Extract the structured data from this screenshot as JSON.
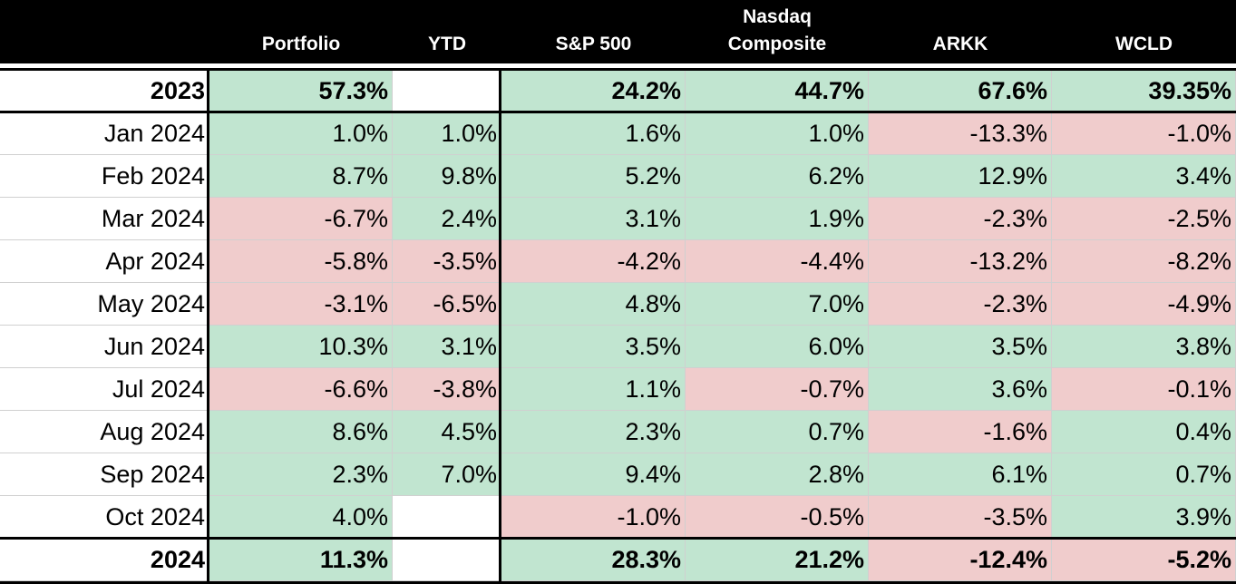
{
  "header": {
    "columns": [
      "",
      "Portfolio",
      "YTD",
      "S&P 500",
      "Nasdaq\nComposite",
      "ARKK",
      "WCLD"
    ]
  },
  "rows": [
    {
      "label": "2023",
      "bold": true,
      "cells": [
        [
          "57.3%",
          "pos"
        ],
        [
          "",
          "blank"
        ],
        [
          "24.2%",
          "pos"
        ],
        [
          "44.7%",
          "pos"
        ],
        [
          "67.6%",
          "pos"
        ],
        [
          "39.35%",
          "pos"
        ]
      ]
    },
    {
      "label": "Jan 2024",
      "bold": false,
      "cells": [
        [
          "1.0%",
          "pos"
        ],
        [
          "1.0%",
          "pos"
        ],
        [
          "1.6%",
          "pos"
        ],
        [
          "1.0%",
          "pos"
        ],
        [
          "-13.3%",
          "neg"
        ],
        [
          "-1.0%",
          "neg"
        ]
      ]
    },
    {
      "label": "Feb 2024",
      "bold": false,
      "cells": [
        [
          "8.7%",
          "pos"
        ],
        [
          "9.8%",
          "pos"
        ],
        [
          "5.2%",
          "pos"
        ],
        [
          "6.2%",
          "pos"
        ],
        [
          "12.9%",
          "pos"
        ],
        [
          "3.4%",
          "pos"
        ]
      ]
    },
    {
      "label": "Mar 2024",
      "bold": false,
      "cells": [
        [
          "-6.7%",
          "neg"
        ],
        [
          "2.4%",
          "pos"
        ],
        [
          "3.1%",
          "pos"
        ],
        [
          "1.9%",
          "pos"
        ],
        [
          "-2.3%",
          "neg"
        ],
        [
          "-2.5%",
          "neg"
        ]
      ]
    },
    {
      "label": "Apr 2024",
      "bold": false,
      "cells": [
        [
          "-5.8%",
          "neg"
        ],
        [
          "-3.5%",
          "neg"
        ],
        [
          "-4.2%",
          "neg"
        ],
        [
          "-4.4%",
          "neg"
        ],
        [
          "-13.2%",
          "neg"
        ],
        [
          "-8.2%",
          "neg"
        ]
      ]
    },
    {
      "label": "May 2024",
      "bold": false,
      "cells": [
        [
          "-3.1%",
          "neg"
        ],
        [
          "-6.5%",
          "neg"
        ],
        [
          "4.8%",
          "pos"
        ],
        [
          "7.0%",
          "pos"
        ],
        [
          "-2.3%",
          "neg"
        ],
        [
          "-4.9%",
          "neg"
        ]
      ]
    },
    {
      "label": "Jun 2024",
      "bold": false,
      "cells": [
        [
          "10.3%",
          "pos"
        ],
        [
          "3.1%",
          "pos"
        ],
        [
          "3.5%",
          "pos"
        ],
        [
          "6.0%",
          "pos"
        ],
        [
          "3.5%",
          "pos"
        ],
        [
          "3.8%",
          "pos"
        ]
      ]
    },
    {
      "label": "Jul 2024",
      "bold": false,
      "cells": [
        [
          "-6.6%",
          "neg"
        ],
        [
          "-3.8%",
          "neg"
        ],
        [
          "1.1%",
          "pos"
        ],
        [
          "-0.7%",
          "neg"
        ],
        [
          "3.6%",
          "pos"
        ],
        [
          "-0.1%",
          "neg"
        ]
      ]
    },
    {
      "label": "Aug 2024",
      "bold": false,
      "cells": [
        [
          "8.6%",
          "pos"
        ],
        [
          "4.5%",
          "pos"
        ],
        [
          "2.3%",
          "pos"
        ],
        [
          "0.7%",
          "pos"
        ],
        [
          "-1.6%",
          "neg"
        ],
        [
          "0.4%",
          "pos"
        ]
      ]
    },
    {
      "label": "Sep 2024",
      "bold": false,
      "cells": [
        [
          "2.3%",
          "pos"
        ],
        [
          "7.0%",
          "pos"
        ],
        [
          "9.4%",
          "pos"
        ],
        [
          "2.8%",
          "pos"
        ],
        [
          "6.1%",
          "pos"
        ],
        [
          "0.7%",
          "pos"
        ]
      ]
    },
    {
      "label": "Oct 2024",
      "bold": false,
      "cells": [
        [
          "4.0%",
          "pos"
        ],
        [
          "",
          "blank"
        ],
        [
          "-1.0%",
          "neg"
        ],
        [
          "-0.5%",
          "neg"
        ],
        [
          "-3.5%",
          "neg"
        ],
        [
          "3.9%",
          "pos"
        ]
      ]
    },
    {
      "label": "2024",
      "bold": true,
      "cells": [
        [
          "11.3%",
          "pos"
        ],
        [
          "",
          "blank"
        ],
        [
          "28.3%",
          "pos"
        ],
        [
          "21.2%",
          "pos"
        ],
        [
          "-12.4%",
          "neg"
        ],
        [
          "-5.2%",
          "neg"
        ]
      ]
    }
  ],
  "colors": {
    "positive": "#c1e5d0",
    "negative": "#f0cccc",
    "header_bg": "#000000",
    "header_text": "#ffffff"
  }
}
